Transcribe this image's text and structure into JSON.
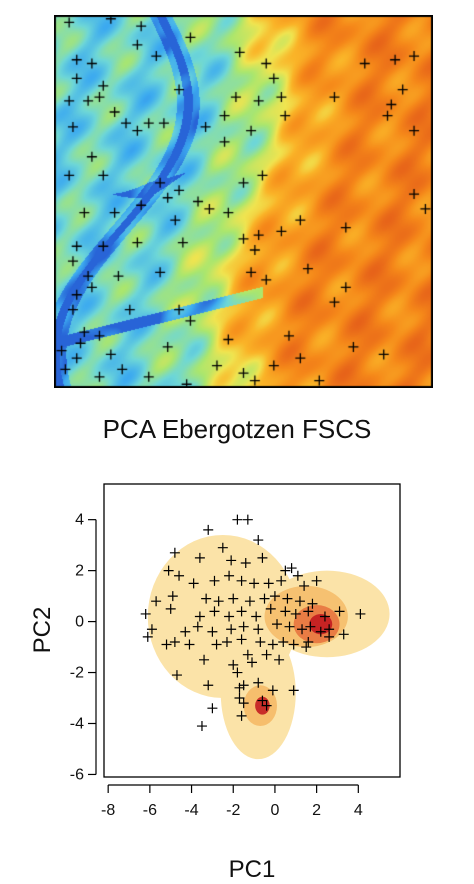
{
  "figure": {
    "title": "PCA Ebergotzen FSCS"
  },
  "colors": {
    "map_low": "#2f6fd8",
    "map_mid": "#7ad0c4",
    "map_green": "#b7e36a",
    "map_yellow": "#f7e24a",
    "map_orange": "#f59420",
    "map_high": "#e8601a",
    "density_low": "#fbe3a8",
    "density_mid": "#f4b25a",
    "density_high": "#c0141d",
    "marker": "#000000"
  },
  "chart_data": [
    {
      "type": "raster-map",
      "description_shown": "study area raster with sample sites marked as black crosses",
      "points": [
        [
          0.04,
          0.02
        ],
        [
          0.15,
          0.01
        ],
        [
          0.23,
          0.03
        ],
        [
          0.36,
          0.06
        ],
        [
          0.22,
          0.08
        ],
        [
          0.06,
          0.12
        ],
        [
          0.1,
          0.13
        ],
        [
          0.27,
          0.11
        ],
        [
          0.49,
          0.1
        ],
        [
          0.56,
          0.13
        ],
        [
          0.58,
          0.17
        ],
        [
          0.82,
          0.13
        ],
        [
          0.9,
          0.12
        ],
        [
          0.95,
          0.11
        ],
        [
          0.06,
          0.17
        ],
        [
          0.13,
          0.19
        ],
        [
          0.04,
          0.23
        ],
        [
          0.09,
          0.23
        ],
        [
          0.12,
          0.22
        ],
        [
          0.33,
          0.2
        ],
        [
          0.48,
          0.22
        ],
        [
          0.54,
          0.23
        ],
        [
          0.6,
          0.22
        ],
        [
          0.74,
          0.22
        ],
        [
          0.92,
          0.2
        ],
        [
          0.16,
          0.26
        ],
        [
          0.45,
          0.27
        ],
        [
          0.61,
          0.27
        ],
        [
          0.05,
          0.3
        ],
        [
          0.19,
          0.29
        ],
        [
          0.22,
          0.31
        ],
        [
          0.25,
          0.29
        ],
        [
          0.29,
          0.29
        ],
        [
          0.4,
          0.3
        ],
        [
          0.45,
          0.34
        ],
        [
          0.52,
          0.31
        ],
        [
          0.88,
          0.27
        ],
        [
          0.89,
          0.24
        ],
        [
          0.1,
          0.38
        ],
        [
          0.04,
          0.43
        ],
        [
          0.13,
          0.43
        ],
        [
          0.5,
          0.45
        ],
        [
          0.55,
          0.43
        ],
        [
          0.33,
          0.47
        ],
        [
          0.28,
          0.45
        ],
        [
          0.3,
          0.49
        ],
        [
          0.23,
          0.51
        ],
        [
          0.38,
          0.5
        ],
        [
          0.08,
          0.53
        ],
        [
          0.16,
          0.53
        ],
        [
          0.32,
          0.55
        ],
        [
          0.41,
          0.52
        ],
        [
          0.46,
          0.53
        ],
        [
          0.65,
          0.55
        ],
        [
          0.95,
          0.48
        ],
        [
          0.54,
          0.59
        ],
        [
          0.22,
          0.61
        ],
        [
          0.34,
          0.61
        ],
        [
          0.5,
          0.6
        ],
        [
          0.53,
          0.63
        ],
        [
          0.77,
          0.57
        ],
        [
          0.98,
          0.52
        ],
        [
          0.6,
          0.58
        ],
        [
          0.06,
          0.62
        ],
        [
          0.13,
          0.62
        ],
        [
          0.05,
          0.66
        ],
        [
          0.28,
          0.69
        ],
        [
          0.52,
          0.69
        ],
        [
          0.56,
          0.71
        ],
        [
          0.09,
          0.7
        ],
        [
          0.17,
          0.7
        ],
        [
          0.1,
          0.73
        ],
        [
          0.06,
          0.75
        ],
        [
          0.05,
          0.79
        ],
        [
          0.2,
          0.79
        ],
        [
          0.33,
          0.79
        ],
        [
          0.77,
          0.73
        ],
        [
          0.36,
          0.82
        ],
        [
          0.08,
          0.85
        ],
        [
          0.12,
          0.86
        ],
        [
          0.07,
          0.88
        ],
        [
          0.3,
          0.89
        ],
        [
          0.02,
          0.9
        ],
        [
          0.06,
          0.92
        ],
        [
          0.15,
          0.91
        ],
        [
          0.03,
          0.95
        ],
        [
          0.12,
          0.97
        ],
        [
          0.46,
          0.87
        ],
        [
          0.43,
          0.94
        ],
        [
          0.5,
          0.96
        ],
        [
          0.58,
          0.94
        ],
        [
          0.62,
          0.86
        ],
        [
          0.65,
          0.92
        ],
        [
          0.79,
          0.89
        ],
        [
          0.87,
          0.91
        ],
        [
          0.18,
          0.95
        ],
        [
          0.25,
          0.97
        ],
        [
          0.35,
          0.99
        ],
        [
          0.53,
          0.98
        ],
        [
          0.7,
          0.98
        ],
        [
          0.74,
          0.77
        ],
        [
          0.67,
          0.68
        ],
        [
          0.95,
          0.31
        ]
      ]
    },
    {
      "type": "scatter",
      "title": "",
      "xlabel": "PC1",
      "ylabel": "PC2",
      "xlim": [
        -8.2,
        6
      ],
      "ylim": [
        -6.1,
        5.4
      ],
      "xticks": [
        -8,
        -6,
        -4,
        -2,
        0,
        2,
        4
      ],
      "yticks": [
        -6,
        -4,
        -2,
        0,
        2,
        4
      ],
      "xtick_labels": [
        "-8",
        "-6",
        "-4",
        "-2",
        "0",
        "2",
        "4"
      ],
      "ytick_labels": [
        "-6",
        "-4",
        "-2",
        "0",
        "2",
        "4"
      ],
      "density_background": true,
      "points": {
        "x": [
          -1.8,
          -1.3,
          -3.2,
          -0.8,
          -2.5,
          -4.8,
          -3.6,
          -2.1,
          -1.4,
          -0.6,
          0.5,
          0.8,
          1.1,
          -5.1,
          -4.6,
          -3.9,
          -2.9,
          -2.2,
          -1.6,
          -1.0,
          -0.3,
          0.3,
          1.4,
          2.0,
          -5.7,
          -4.9,
          -3.3,
          -2.7,
          -2.0,
          -1.2,
          -0.5,
          0.0,
          0.6,
          1.2,
          1.8,
          -6.2,
          -5.0,
          -3.6,
          -2.9,
          -2.2,
          -1.6,
          -0.9,
          -0.2,
          0.5,
          1.0,
          1.6,
          2.4,
          3.1,
          4.1,
          -5.9,
          -4.3,
          -3.7,
          -3.0,
          -2.1,
          -1.5,
          -0.8,
          0.1,
          0.7,
          1.3,
          1.7,
          2.2,
          2.6,
          3.3,
          -4.8,
          -4.1,
          -2.8,
          -2.3,
          -1.6,
          -0.7,
          -0.1,
          0.4,
          0.9,
          1.5,
          -6.1,
          -5.2,
          -3.4,
          -2.0,
          -1.1,
          -0.4,
          0.2,
          1.6,
          2.6,
          -4.7,
          -3.2,
          -1.7,
          -0.8,
          -1.5,
          -0.1,
          0.9,
          -1.7,
          -1.5,
          -0.6,
          -0.4,
          -3.0,
          -1.6,
          -3.5,
          -1.8,
          -1.3
        ],
        "y": [
          4.0,
          4.0,
          3.6,
          3.2,
          2.9,
          2.7,
          2.5,
          2.4,
          2.3,
          2.5,
          2.0,
          2.1,
          1.8,
          2.0,
          1.8,
          1.5,
          1.6,
          1.8,
          1.6,
          1.5,
          1.5,
          1.6,
          1.4,
          1.6,
          0.8,
          1.0,
          0.9,
          0.8,
          0.9,
          0.8,
          0.9,
          1.0,
          0.9,
          0.8,
          0.7,
          0.3,
          0.5,
          0.2,
          0.4,
          0.2,
          0.4,
          0.2,
          0.5,
          0.4,
          0.3,
          0.4,
          0.2,
          0.4,
          0.3,
          -0.3,
          -0.4,
          -0.2,
          -0.4,
          -0.3,
          -0.2,
          -0.3,
          -0.1,
          -0.2,
          -0.3,
          -0.2,
          -0.4,
          -0.3,
          -0.5,
          -0.8,
          -0.9,
          -0.9,
          -0.8,
          -0.7,
          -0.8,
          -0.9,
          -0.8,
          -0.9,
          -1.0,
          -0.6,
          -0.9,
          -1.5,
          -1.7,
          -1.6,
          -1.3,
          -1.5,
          -0.8,
          -0.6,
          -2.1,
          -2.5,
          -2.6,
          -2.4,
          -2.5,
          -2.7,
          -2.7,
          -3.0,
          -3.2,
          -3.1,
          -3.3,
          -3.4,
          -3.7,
          -4.1,
          -2.0,
          -1.3
        ]
      }
    }
  ]
}
